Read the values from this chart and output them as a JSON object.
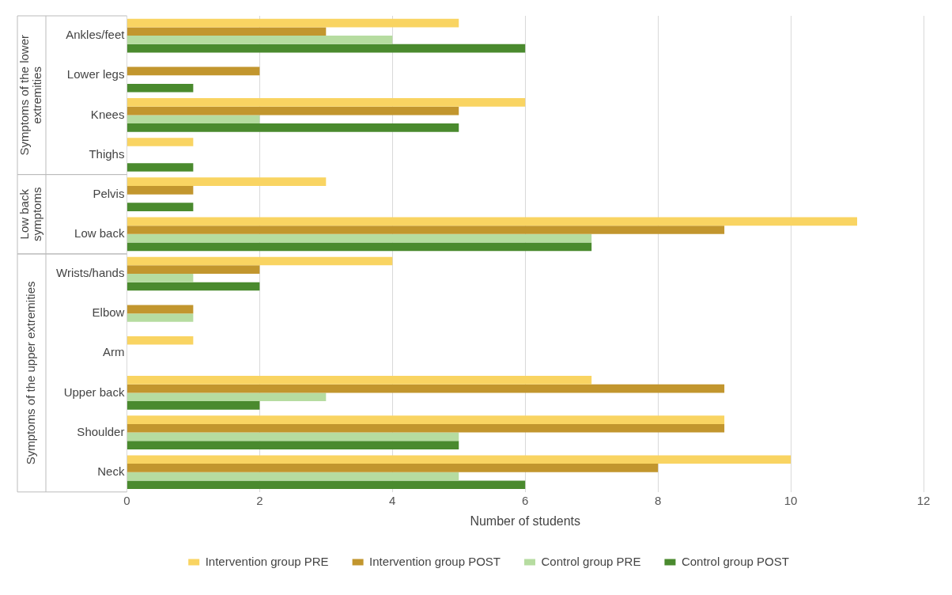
{
  "chart_data": {
    "type": "bar",
    "orientation": "horizontal",
    "xlabel": "Number of students",
    "categories": [
      "Ankles/feet",
      "Lower legs",
      "Knees",
      "Thighs",
      "Pelvis",
      "Low back",
      "Wrists/hands",
      "Elbow",
      "Arm",
      "Upper back",
      "Shoulder",
      "Neck"
    ],
    "series": [
      {
        "name": "Intervention group PRE",
        "color": "#f9d462",
        "values": [
          5,
          0,
          6,
          1,
          3,
          11,
          4,
          0,
          1,
          7,
          9,
          10
        ]
      },
      {
        "name": "Intervention group POST",
        "color": "#c2962e",
        "values": [
          3,
          2,
          5,
          0,
          1,
          9,
          2,
          1,
          0,
          9,
          9,
          8
        ]
      },
      {
        "name": "Control group PRE",
        "color": "#b6dca0",
        "values": [
          4,
          0,
          2,
          0,
          0,
          7,
          1,
          1,
          0,
          3,
          5,
          5
        ]
      },
      {
        "name": "Control group POST",
        "color": "#4a8a2e",
        "values": [
          6,
          1,
          5,
          1,
          1,
          7,
          2,
          0,
          0,
          2,
          5,
          6
        ]
      }
    ],
    "xlim": [
      0,
      12
    ],
    "xticks": [
      0,
      2,
      4,
      6,
      8,
      10,
      12
    ],
    "grid": "x",
    "legend": "bottom",
    "annotations": [
      "Symptoms of the lower extremities",
      "Low back symptoms",
      "Symptoms of the upper extremities"
    ]
  }
}
